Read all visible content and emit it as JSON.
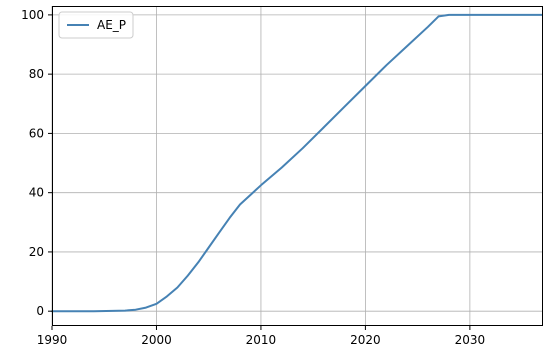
{
  "chart_data": {
    "type": "line",
    "title": "",
    "xlabel": "",
    "ylabel": "",
    "xlim": [
      1990,
      2037
    ],
    "ylim": [
      -5,
      103
    ],
    "xticks": [
      1990,
      2000,
      2010,
      2020,
      2030
    ],
    "yticks": [
      0,
      20,
      40,
      60,
      80,
      100
    ],
    "grid": true,
    "legend_position": "top-left",
    "series": [
      {
        "name": "AE_P",
        "color": "#4682b4",
        "x": [
          1990,
          1994,
          1997,
          1998,
          1999,
          2000,
          2001,
          2002,
          2003,
          2004,
          2005,
          2006,
          2007,
          2008,
          2010,
          2012,
          2014,
          2016,
          2018,
          2020,
          2022,
          2024,
          2026,
          2027,
          2028,
          2030,
          2037
        ],
        "y": [
          0,
          0,
          0.2,
          0.5,
          1.2,
          2.5,
          5,
          8,
          12,
          16.5,
          21.5,
          26.5,
          31.5,
          36,
          42.5,
          48.5,
          55,
          62,
          69,
          76,
          83,
          89.5,
          96,
          99.5,
          100,
          100,
          100
        ]
      }
    ]
  }
}
